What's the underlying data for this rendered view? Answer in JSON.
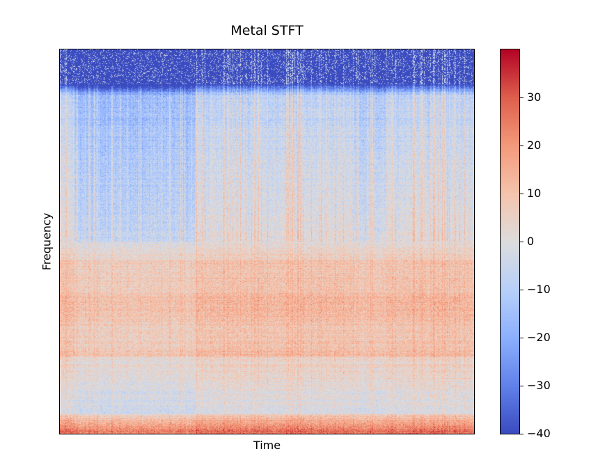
{
  "chart_data": {
    "type": "heatmap",
    "title": "Metal STFT",
    "xlabel": "Time",
    "ylabel": "Frequency",
    "x_ticks_visible": false,
    "y_ticks_visible": false,
    "colormap": "coolwarm",
    "colorbar": {
      "range": [
        -40,
        40
      ],
      "ticks": [
        30,
        20,
        10,
        0,
        -10,
        -20,
        -30,
        -40
      ],
      "tick_labels": [
        "30",
        "20",
        "10",
        "0",
        "−10",
        "−20",
        "−30",
        "−40"
      ],
      "position": "right"
    },
    "value_range": [
      -40,
      40
    ]
  }
}
